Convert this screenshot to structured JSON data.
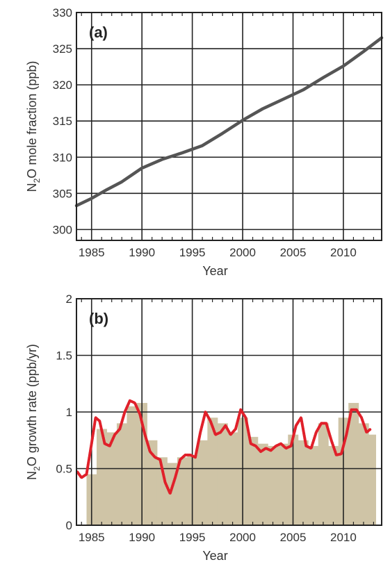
{
  "chart_data": [
    {
      "type": "line",
      "panel_label": "(a)",
      "xlabel": "Year",
      "ylabel_parts": [
        "N",
        "2",
        "O mole fraction (ppb)"
      ],
      "xlim": [
        1983.5,
        2013.8
      ],
      "ylim": [
        298.5,
        330
      ],
      "xticks": [
        1985,
        1990,
        1995,
        2000,
        2005,
        2010
      ],
      "xtick_labels": [
        "1985",
        "1990",
        "1995",
        "2000",
        "2005",
        "2010"
      ],
      "yticks": [
        300,
        305,
        310,
        315,
        320,
        325,
        330
      ],
      "ytick_labels": [
        "300",
        "305",
        "310",
        "315",
        "320",
        "325",
        "330"
      ],
      "grid": true,
      "series": [
        {
          "color": "#555555",
          "x": [
            1983.5,
            1985,
            1986.5,
            1988,
            1990,
            1992,
            1994,
            1996,
            1998,
            2000,
            2002,
            2004,
            2006,
            2008,
            2010,
            2012,
            2013.8
          ],
          "y": [
            303.3,
            304.3,
            305.5,
            306.6,
            308.5,
            309.7,
            310.6,
            311.6,
            313.3,
            315.1,
            316.7,
            318.0,
            319.3,
            321.0,
            322.6,
            324.6,
            326.5
          ]
        }
      ]
    },
    {
      "type": "area",
      "panel_label": "(b)",
      "xlabel": "Year",
      "ylabel_parts": [
        "N",
        "2",
        "O growth rate (ppb/yr)"
      ],
      "xlim": [
        1983.5,
        2013.8
      ],
      "ylim": [
        0,
        2
      ],
      "xticks": [
        1985,
        1990,
        1995,
        2000,
        2005,
        2010
      ],
      "xtick_labels": [
        "1985",
        "1990",
        "1995",
        "2000",
        "2005",
        "2010"
      ],
      "yticks": [
        0,
        0.5,
        1,
        1.5,
        2
      ],
      "ytick_labels": [
        "0",
        "0.5",
        "1",
        "1.5",
        "2"
      ],
      "grid": true,
      "bars": {
        "color": "#cfc4a6",
        "x": [
          1985,
          1986,
          1987,
          1988,
          1989,
          1990,
          1991,
          1992,
          1993,
          1994,
          1995,
          1996,
          1997,
          1998,
          1999,
          2000,
          2001,
          2002,
          2003,
          2004,
          2005,
          2006,
          2007,
          2008,
          2009,
          2010,
          2011,
          2012,
          2013
        ],
        "values": [
          0.45,
          0.85,
          0.82,
          0.9,
          1.05,
          1.08,
          0.75,
          0.6,
          0.55,
          0.6,
          0.62,
          0.75,
          0.95,
          0.9,
          0.82,
          0.95,
          0.78,
          0.72,
          0.7,
          0.72,
          0.8,
          0.75,
          0.7,
          0.9,
          0.7,
          0.95,
          1.08,
          0.9,
          0.8
        ]
      },
      "series": [
        {
          "color": "#e0202a",
          "x": [
            1983.6,
            1984.0,
            1984.5,
            1985.0,
            1985.4,
            1985.8,
            1986.3,
            1986.8,
            1987.3,
            1987.8,
            1988.3,
            1988.8,
            1989.3,
            1989.8,
            1990.3,
            1990.8,
            1991.3,
            1991.8,
            1992.3,
            1992.8,
            1993.3,
            1993.8,
            1994.3,
            1994.8,
            1995.3,
            1995.8,
            1996.3,
            1996.8,
            1997.3,
            1997.8,
            1998.3,
            1998.8,
            1999.3,
            1999.8,
            2000.3,
            2000.8,
            2001.3,
            2001.8,
            2002.3,
            2002.8,
            2003.3,
            2003.8,
            2004.3,
            2004.8,
            2005.3,
            2005.8,
            2006.3,
            2006.8,
            2007.3,
            2007.8,
            2008.3,
            2008.8,
            2009.3,
            2009.8,
            2010.3,
            2010.8,
            2011.3,
            2011.8,
            2012.3,
            2012.7
          ],
          "y": [
            0.47,
            0.42,
            0.45,
            0.72,
            0.95,
            0.92,
            0.72,
            0.7,
            0.8,
            0.85,
            1.0,
            1.1,
            1.08,
            0.98,
            0.8,
            0.65,
            0.6,
            0.58,
            0.38,
            0.28,
            0.42,
            0.58,
            0.62,
            0.62,
            0.6,
            0.82,
            1.0,
            0.92,
            0.8,
            0.82,
            0.88,
            0.8,
            0.85,
            1.02,
            0.95,
            0.72,
            0.7,
            0.65,
            0.68,
            0.66,
            0.7,
            0.72,
            0.68,
            0.7,
            0.88,
            0.95,
            0.7,
            0.68,
            0.82,
            0.9,
            0.9,
            0.75,
            0.62,
            0.63,
            0.8,
            1.02,
            1.02,
            0.95,
            0.82,
            0.85
          ]
        }
      ]
    }
  ]
}
